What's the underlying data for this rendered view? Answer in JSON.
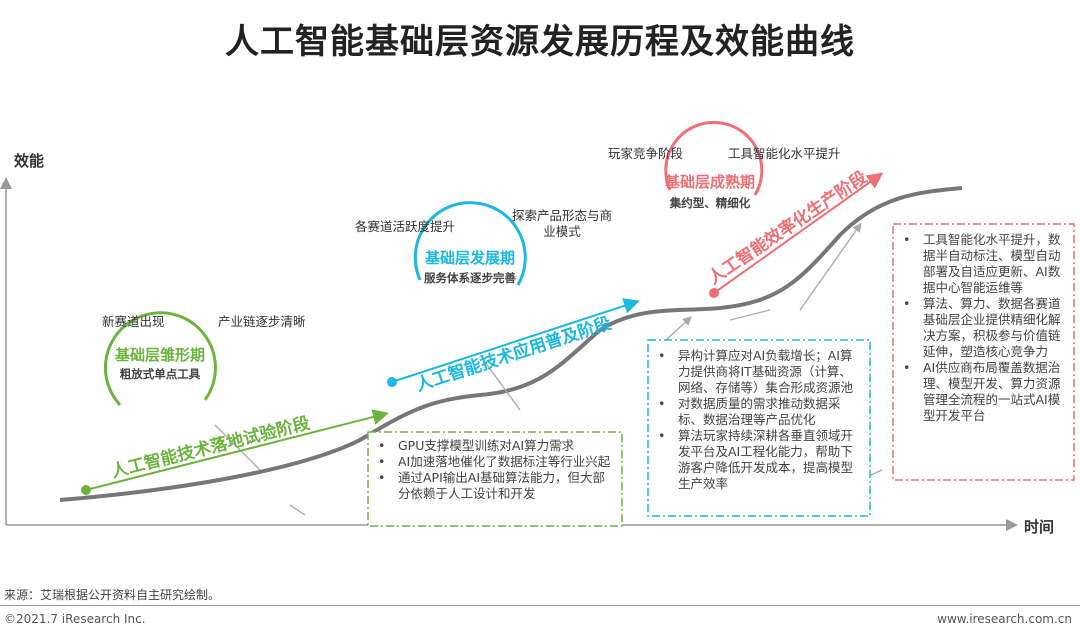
{
  "title": "人工智能基础层资源发展历程及效能曲线",
  "axes": {
    "y_label": "效能",
    "x_label": "时间"
  },
  "colors": {
    "green": "#6db33f",
    "blue": "#1bb8e0",
    "red": "#ef6f74",
    "curve": "#777777"
  },
  "phases": [
    {
      "circle_title": "基础层雏形期",
      "circle_sub": "粗放式单点工具",
      "notes": [
        "新赛道出现",
        "产业链逐步清晰"
      ],
      "stage": "人工智能技术落地试验阶段",
      "bullets": [
        "GPU支撑模型训练对AI算力需求",
        "AI加速落地催化了数据标注等行业兴起",
        "通过API输出AI基础算法能力，但大部分依赖于人工设计和开发"
      ]
    },
    {
      "circle_title": "基础层发展期",
      "circle_sub": "服务体系逐步完善",
      "notes": [
        "各赛道活跃度提升",
        "探索产品形态与商业模式"
      ],
      "stage": "人工智能技术应用普及阶段",
      "bullets": [
        "异构计算应对AI负载增长；AI算力提供商将IT基础资源（计算、网络、存储等）集合形成资源池",
        "对数据质量的需求推动数据采标、数据治理等产品优化",
        "算法玩家持续深耕各垂直领域开发平台及AI工程化能力，帮助下游客户降低开发成本，提高模型生产效率"
      ]
    },
    {
      "circle_title": "基础层成熟期",
      "circle_sub": "集约型、精细化",
      "notes": [
        "玩家竞争阶段",
        "工具智能化水平提升"
      ],
      "stage": "人工智能效率化生产阶段",
      "bullets": [
        "工具智能化水平提升，数据半自动标注、模型自动部署及自适应更新、AI数据中心智能运维等",
        "算法、算力、数据各赛道基础层企业提供精细化解决方案，积极参与价值链延伸，塑造核心竞争力",
        "AI供应商布局覆盖数据治理、模型开发、算力资源管理全流程的一站式AI模型开发平台"
      ]
    }
  ],
  "footer": {
    "source": "来源：艾瑞根据公开资料自主研究绘制。",
    "copyright": "©2021.7 iResearch Inc.",
    "url": "www.iresearch.com.cn"
  }
}
